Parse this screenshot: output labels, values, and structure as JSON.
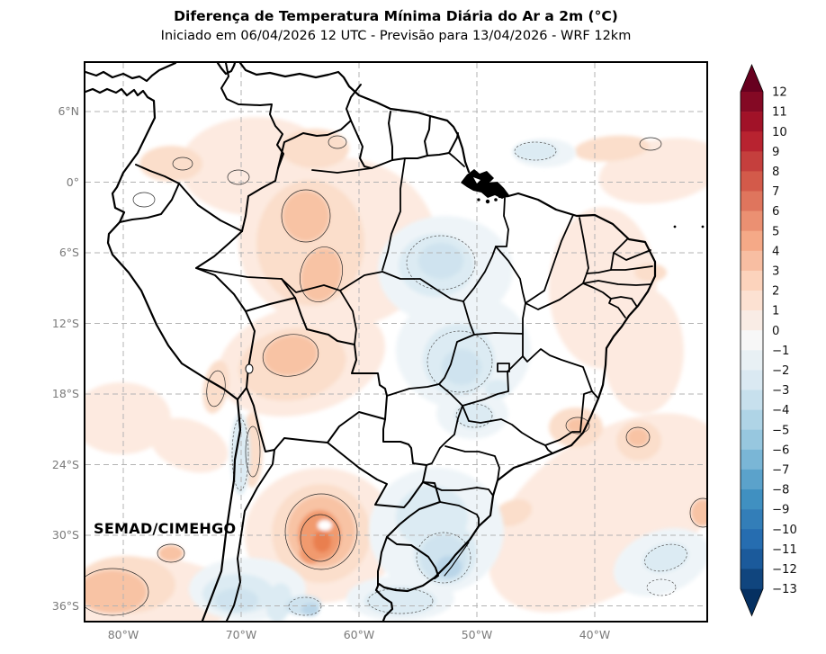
{
  "header": {
    "title": "Diferença de Temperatura Mínima Diária do Ar a 2m (°C)",
    "subtitle": "Iniciado em 06/04/2026 12 UTC - Previsão para 13/04/2026 - WRF 12km"
  },
  "map": {
    "watermark": "SEMAD/CIMEHGO"
  },
  "axes": {
    "lat_ticks": [
      "6°N",
      "0°",
      "6°S",
      "12°S",
      "18°S",
      "24°S",
      "30°S",
      "36°S"
    ],
    "lon_ticks": [
      "80°W",
      "70°W",
      "60°W",
      "50°W",
      "40°W"
    ]
  },
  "colorbar": {
    "unit": "°C",
    "range_min": -13,
    "range_max": 12,
    "tick_labels": [
      "12",
      "11",
      "10",
      "9",
      "8",
      "7",
      "6",
      "5",
      "4",
      "3",
      "2",
      "1",
      "0",
      "−1",
      "−2",
      "−3",
      "−4",
      "−5",
      "−6",
      "−7",
      "−8",
      "−9",
      "−10",
      "−11",
      "−12",
      "−13"
    ],
    "segment_colors_top_to_bottom": [
      "#840924",
      "#a11228",
      "#b82330",
      "#c53f3d",
      "#d35a4a",
      "#df755d",
      "#eb9072",
      "#f5a987",
      "#f8bea2",
      "#fcd3bc",
      "#fce1d2",
      "#f9ece5",
      "#f7f7f7",
      "#e8f0f4",
      "#dae9f2",
      "#c7e0ed",
      "#afd4e6",
      "#97c7df",
      "#7ab6d6",
      "#5ba2cb",
      "#4090c1",
      "#337eb8",
      "#266db0",
      "#1b5a9b",
      "#10457e"
    ],
    "arrow_top_color": "#67001f",
    "arrow_bottom_color": "#053061"
  }
}
